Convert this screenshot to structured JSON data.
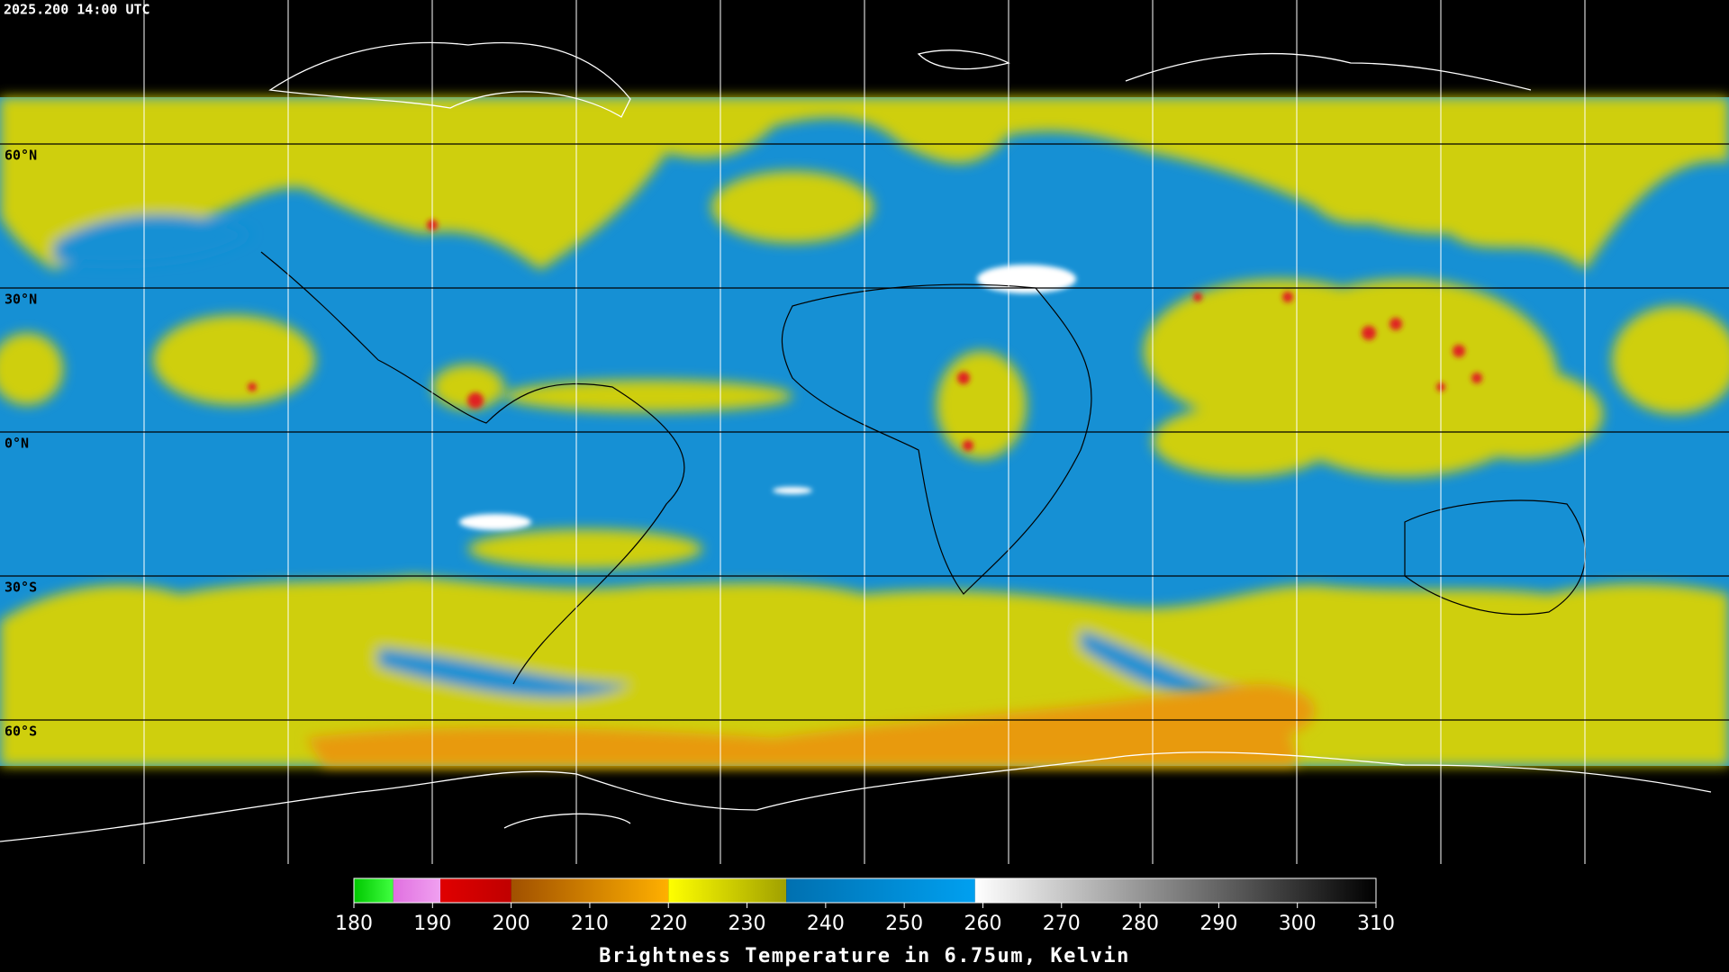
{
  "header": {
    "timestamp": "2025.200 14:00 UTC"
  },
  "map": {
    "latitude_labels": [
      "60°N",
      "30°N",
      "0°N",
      "30°S",
      "60°S"
    ]
  },
  "colorbar": {
    "range": [
      180,
      310
    ],
    "ticks": [
      180,
      190,
      200,
      210,
      220,
      230,
      240,
      250,
      260,
      270,
      280,
      290,
      300,
      310
    ],
    "segments": [
      {
        "from": 180,
        "to": 185,
        "colors": [
          "#00c800",
          "#40ff40"
        ]
      },
      {
        "from": 185,
        "to": 191,
        "colors": [
          "#e070e0",
          "#f0a0f0"
        ]
      },
      {
        "from": 191,
        "to": 200,
        "colors": [
          "#e00000",
          "#c00000"
        ]
      },
      {
        "from": 200,
        "to": 220,
        "colors": [
          "#a05000",
          "#ffb000"
        ]
      },
      {
        "from": 220,
        "to": 235,
        "colors": [
          "#ffff00",
          "#a0a000"
        ]
      },
      {
        "from": 235,
        "to": 259,
        "colors": [
          "#0070b0",
          "#00a0f0"
        ]
      },
      {
        "from": 259,
        "to": 310,
        "colors": [
          "#ffffff",
          "#000000"
        ]
      }
    ],
    "label": "Brightness Temperature in 6.75um, Kelvin"
  }
}
